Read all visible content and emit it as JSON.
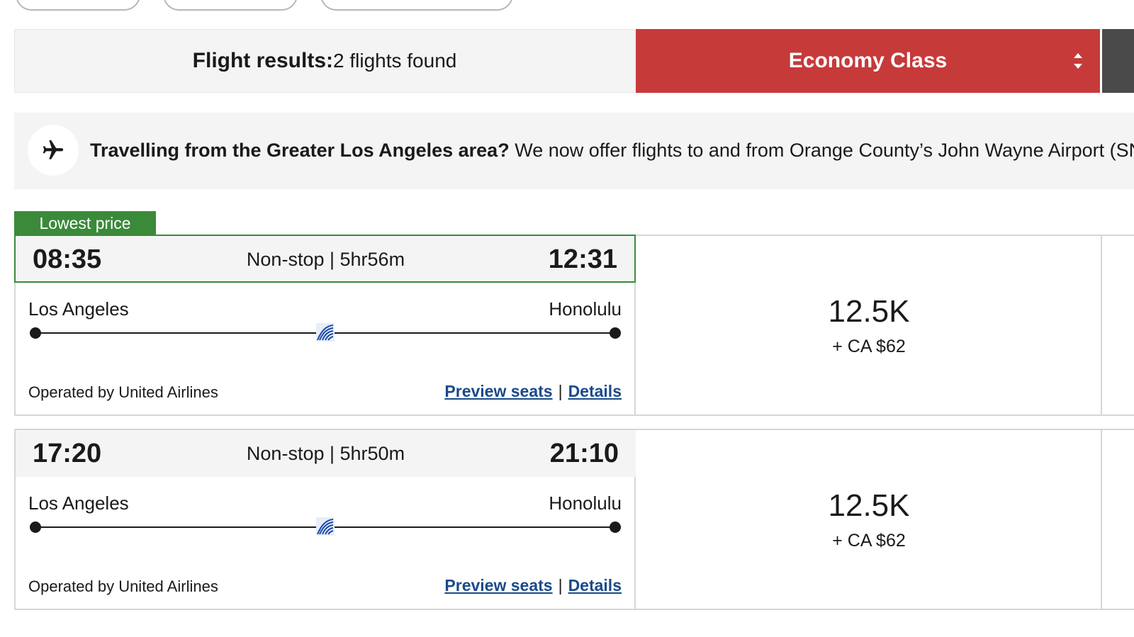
{
  "results": {
    "label": "Flight results:",
    "count_text": "2 flights found"
  },
  "cabin_select": {
    "selected": "Economy Class"
  },
  "banner": {
    "question": "Travelling from the Greater Los Angeles area?",
    "message": " We now offer flights to and from Orange County’s John Wayne Airport (SNA"
  },
  "tag": {
    "label": "Lowest price"
  },
  "flights": [
    {
      "departure_time": "08:35",
      "arrival_time": "12:31",
      "stops": "Non-stop",
      "duration": "5hr56m",
      "origin": "Los Angeles",
      "destination": "Honolulu",
      "operated_by": "Operated by United Airlines",
      "preview_seats": "Preview seats",
      "details": "Details",
      "points": "12.5K",
      "cash": "+ CA $62"
    },
    {
      "departure_time": "17:20",
      "arrival_time": "21:10",
      "stops": "Non-stop",
      "duration": "5hr50m",
      "origin": "Los Angeles",
      "destination": "Honolulu",
      "operated_by": "Operated by United Airlines",
      "preview_seats": "Preview seats",
      "details": "Details",
      "points": "12.5K",
      "cash": "+ CA $62"
    }
  ],
  "colors": {
    "accent_red": "#c63a3a",
    "lowest_green": "#3a8a3a",
    "link_blue": "#1a4a8a"
  },
  "icons": {
    "banner": "airplane-icon",
    "select": "sort-arrows-icon",
    "airline": "united-airlines-logo-icon"
  }
}
